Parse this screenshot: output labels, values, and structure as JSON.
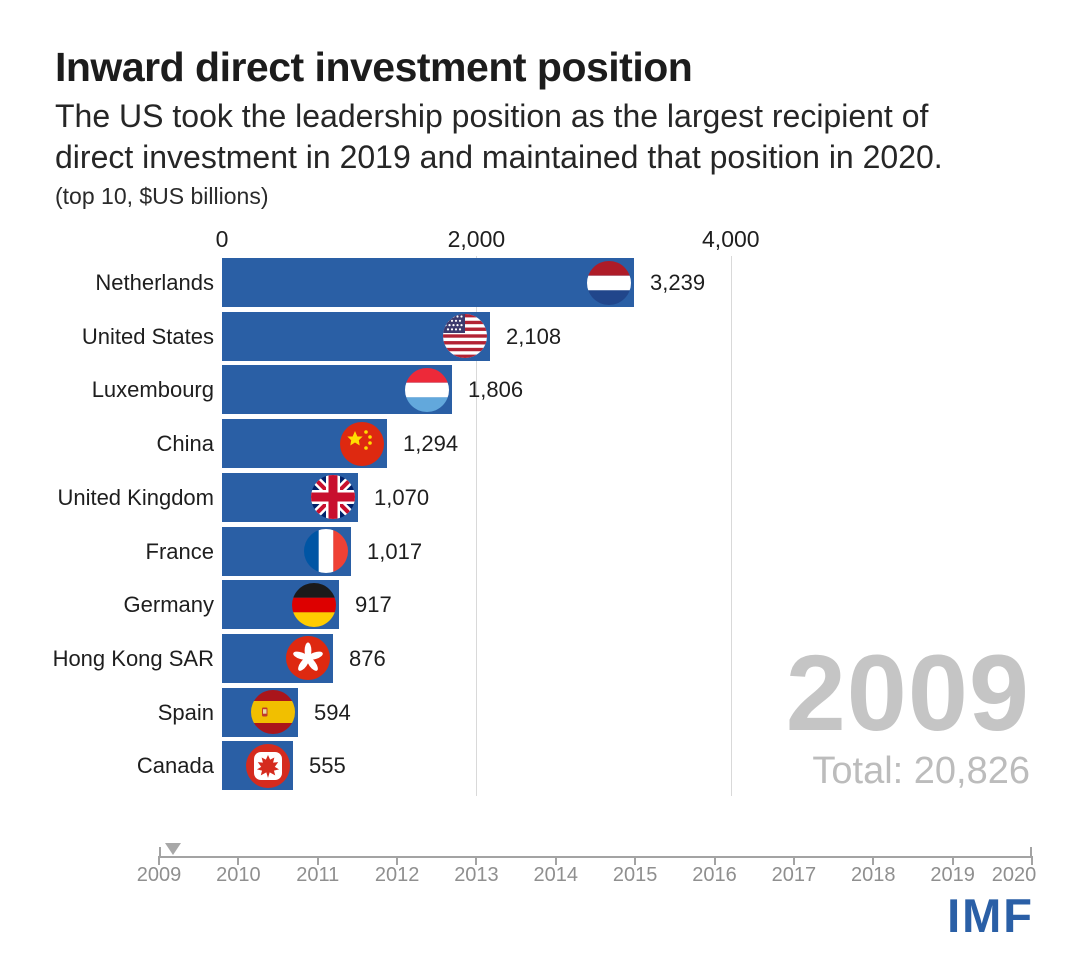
{
  "header": {
    "title": "Inward direct investment position",
    "subtitle": "The US took the leadership position as the largest recipient of direct investment in 2019 and maintained that position in 2020.",
    "unit_note": "(top 10, $US billions)"
  },
  "chart_data": {
    "type": "bar",
    "orientation": "horizontal",
    "title": "Inward direct investment position",
    "unit": "$US billions",
    "categories": [
      "Netherlands",
      "United States",
      "Luxembourg",
      "China",
      "United Kingdom",
      "France",
      "Germany",
      "Hong Kong SAR",
      "Spain",
      "Canada"
    ],
    "values": [
      3239,
      2108,
      1806,
      1294,
      1070,
      1017,
      917,
      876,
      594,
      555
    ],
    "value_labels": [
      "3,239",
      "2,108",
      "1,806",
      "1,294",
      "1,070",
      "1,017",
      "917",
      "876",
      "594",
      "555"
    ],
    "flag_icons": [
      "netherlands-flag-icon",
      "united-states-flag-icon",
      "luxembourg-flag-icon",
      "china-flag-icon",
      "united-kingdom-flag-icon",
      "france-flag-icon",
      "germany-flag-icon",
      "hong-kong-flag-icon",
      "spain-flag-icon",
      "canada-flag-icon"
    ],
    "axis": {
      "ticks": [
        0,
        2000,
        4000
      ],
      "tick_labels": [
        "0",
        "2,000",
        "4,000"
      ],
      "xlim": [
        0,
        4300
      ],
      "grid": true
    },
    "bar_color": "#2a5fa5",
    "year": "2009",
    "total_label": "Total: 20,826"
  },
  "timeline": {
    "years": [
      "2009",
      "2010",
      "2011",
      "2012",
      "2013",
      "2014",
      "2015",
      "2016",
      "2017",
      "2018",
      "2019",
      "2020"
    ],
    "marker_year": "2009"
  },
  "footer": {
    "logo": "IMF",
    "logo_color": "#2a5fa6"
  }
}
